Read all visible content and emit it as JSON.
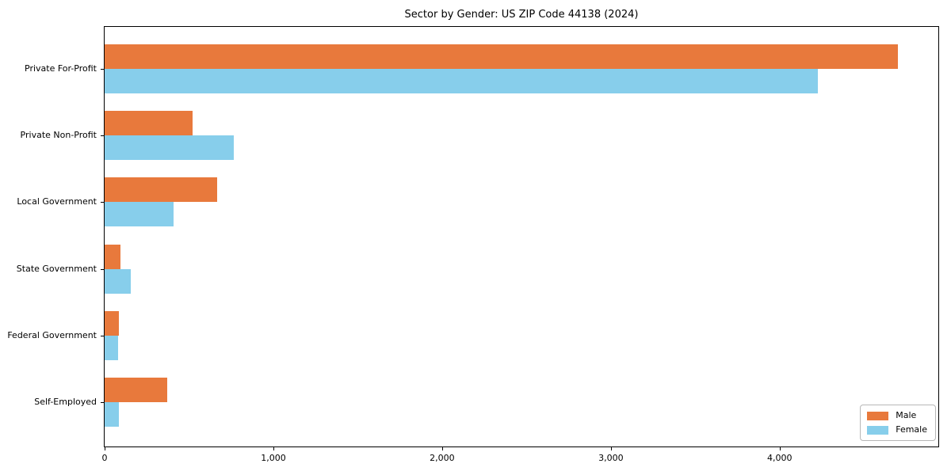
{
  "title": "Sector by Gender: US ZIP Code 44138 (2024)",
  "chart_data": {
    "type": "bar",
    "orientation": "horizontal",
    "title": "Sector by Gender: US ZIP Code 44138 (2024)",
    "categories": [
      "Private For-Profit",
      "Private Non-Profit",
      "Local Government",
      "State Government",
      "Federal Government",
      "Self-Employed"
    ],
    "series": [
      {
        "name": "Male",
        "color": "#e8793c",
        "values": [
          4700,
          520,
          665,
          95,
          85,
          370
        ]
      },
      {
        "name": "Female",
        "color": "#87ceeb",
        "values": [
          4225,
          765,
          410,
          155,
          80,
          85
        ]
      }
    ],
    "xlabel": "",
    "ylabel": "",
    "xlim": [
      0,
      4940
    ],
    "xticks": [
      0,
      1000,
      2000,
      3000,
      4000
    ],
    "xtick_labels": [
      "0",
      "1,000",
      "2,000",
      "3,000",
      "4,000"
    ],
    "grid": false,
    "legend": {
      "position": "lower right",
      "entries": [
        "Male",
        "Female"
      ]
    }
  }
}
